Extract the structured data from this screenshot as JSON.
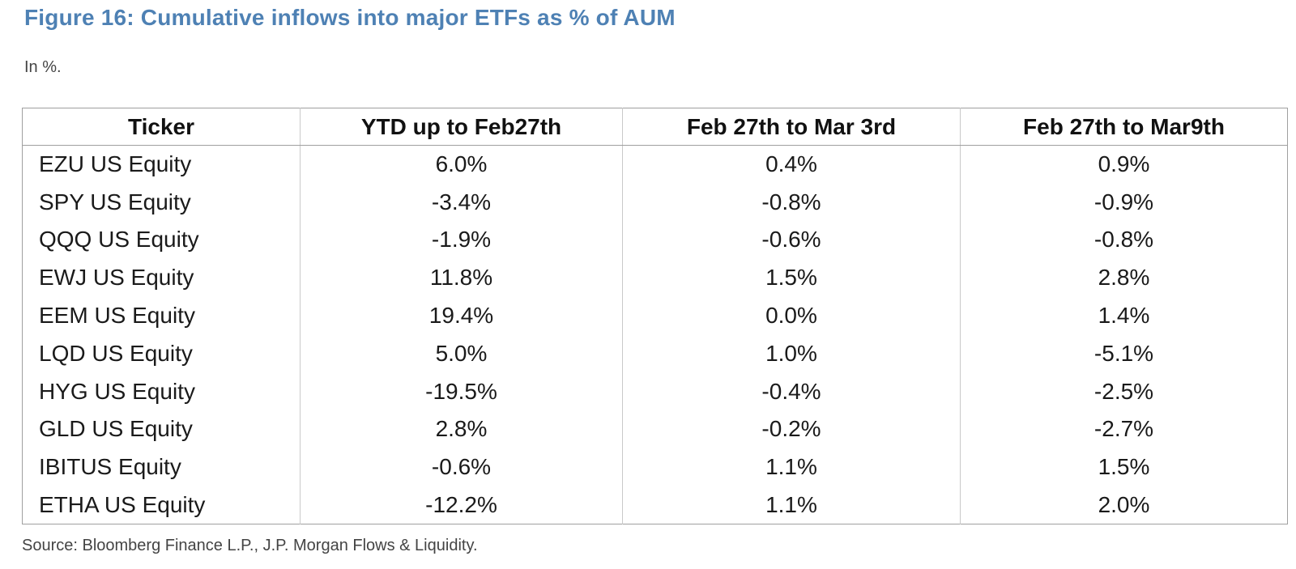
{
  "figure": {
    "title": "Figure 16: Cumulative inflows into major ETFs as % of AUM",
    "subtitle": "In %.",
    "source": "Source: Bloomberg Finance L.P., J.P. Morgan Flows & Liquidity."
  },
  "colors": {
    "title_blue": "#4E81B4",
    "body_text": "#1a1a1a",
    "muted_text": "#444444",
    "border_outer": "#9f9f9f",
    "border_inner": "#c9c9c9"
  },
  "table": {
    "columns": [
      "Ticker",
      "YTD up to Feb27th",
      "Feb 27th to Mar 3rd",
      "Feb 27th to Mar9th"
    ],
    "rows": [
      [
        "EZU US Equity",
        "6.0%",
        "0.4%",
        "0.9%"
      ],
      [
        "SPY US Equity",
        "-3.4%",
        "-0.8%",
        "-0.9%"
      ],
      [
        "QQQ US Equity",
        "-1.9%",
        "-0.6%",
        "-0.8%"
      ],
      [
        "EWJ US Equity",
        "11.8%",
        "1.5%",
        "2.8%"
      ],
      [
        "EEM US Equity",
        "19.4%",
        "0.0%",
        "1.4%"
      ],
      [
        "LQD US Equity",
        "5.0%",
        "1.0%",
        "-5.1%"
      ],
      [
        "HYG US Equity",
        "-19.5%",
        "-0.4%",
        "-2.5%"
      ],
      [
        "GLD US Equity",
        "2.8%",
        "-0.2%",
        "-2.7%"
      ],
      [
        "IBITUS Equity",
        "-0.6%",
        "1.1%",
        "1.5%"
      ],
      [
        "ETHA US Equity",
        "-12.2%",
        "1.1%",
        "2.0%"
      ]
    ]
  },
  "chart_data": {
    "type": "table",
    "title": "Figure 16: Cumulative inflows into major ETFs as % of AUM",
    "unit": "% of AUM",
    "categories": [
      "EZU US Equity",
      "SPY US Equity",
      "QQQ US Equity",
      "EWJ US Equity",
      "EEM US Equity",
      "LQD US Equity",
      "HYG US Equity",
      "GLD US Equity",
      "IBITUS Equity",
      "ETHA US Equity"
    ],
    "series": [
      {
        "name": "YTD up to Feb27th",
        "values": [
          6.0,
          -3.4,
          -1.9,
          11.8,
          19.4,
          5.0,
          -19.5,
          2.8,
          -0.6,
          -12.2
        ]
      },
      {
        "name": "Feb 27th to Mar 3rd",
        "values": [
          0.4,
          -0.8,
          -0.6,
          1.5,
          0.0,
          1.0,
          -0.4,
          -0.2,
          1.1,
          1.1
        ]
      },
      {
        "name": "Feb 27th to Mar9th",
        "values": [
          0.9,
          -0.9,
          -0.8,
          2.8,
          1.4,
          -5.1,
          -2.5,
          -2.7,
          1.5,
          2.0
        ]
      }
    ]
  }
}
